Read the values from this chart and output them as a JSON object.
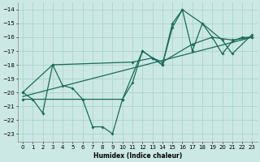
{
  "xlabel": "Humidex (Indice chaleur)",
  "bg_color": "#cce8e4",
  "grid_color": "#aad4cc",
  "line_color": "#1a6b5a",
  "xlim": [
    -0.5,
    23.5
  ],
  "ylim": [
    -23.6,
    -13.5
  ],
  "xticks": [
    0,
    1,
    2,
    3,
    4,
    5,
    6,
    7,
    8,
    9,
    10,
    11,
    12,
    13,
    14,
    15,
    16,
    17,
    18,
    19,
    20,
    21,
    22,
    23
  ],
  "yticks": [
    -14,
    -15,
    -16,
    -17,
    -18,
    -19,
    -20,
    -21,
    -22,
    -23
  ],
  "line1_x": [
    0,
    1,
    2,
    3,
    4,
    5,
    6,
    7,
    8,
    9,
    10,
    11,
    12,
    13,
    14,
    15,
    16,
    17,
    18,
    19,
    20,
    21,
    22,
    23
  ],
  "line1_y": [
    -20,
    -20.5,
    -21.5,
    -18,
    -19.5,
    -19.7,
    -20.5,
    -22.5,
    -22.5,
    -23,
    -20.5,
    -19.3,
    -17,
    -17.5,
    -18,
    -15,
    -14,
    -17,
    -15,
    -16,
    -17.2,
    -16.3,
    -16,
    -16
  ],
  "line2_x": [
    0,
    23
  ],
  "line2_y": [
    -20.3,
    -16.0
  ],
  "line3_x": [
    0,
    6,
    10,
    12,
    13,
    14,
    17,
    19,
    21,
    23
  ],
  "line3_y": [
    -20.5,
    -20.5,
    -20.5,
    -17.0,
    -17.5,
    -17.8,
    -16.5,
    -16.0,
    -16.2,
    -16.0
  ],
  "line4_x": [
    0,
    3,
    11,
    13,
    14,
    15,
    16,
    18,
    20,
    21,
    23
  ],
  "line4_y": [
    -20,
    -18,
    -17.8,
    -17.5,
    -18.0,
    -15.3,
    -14.0,
    -15.0,
    -16.2,
    -17.2,
    -15.8
  ]
}
